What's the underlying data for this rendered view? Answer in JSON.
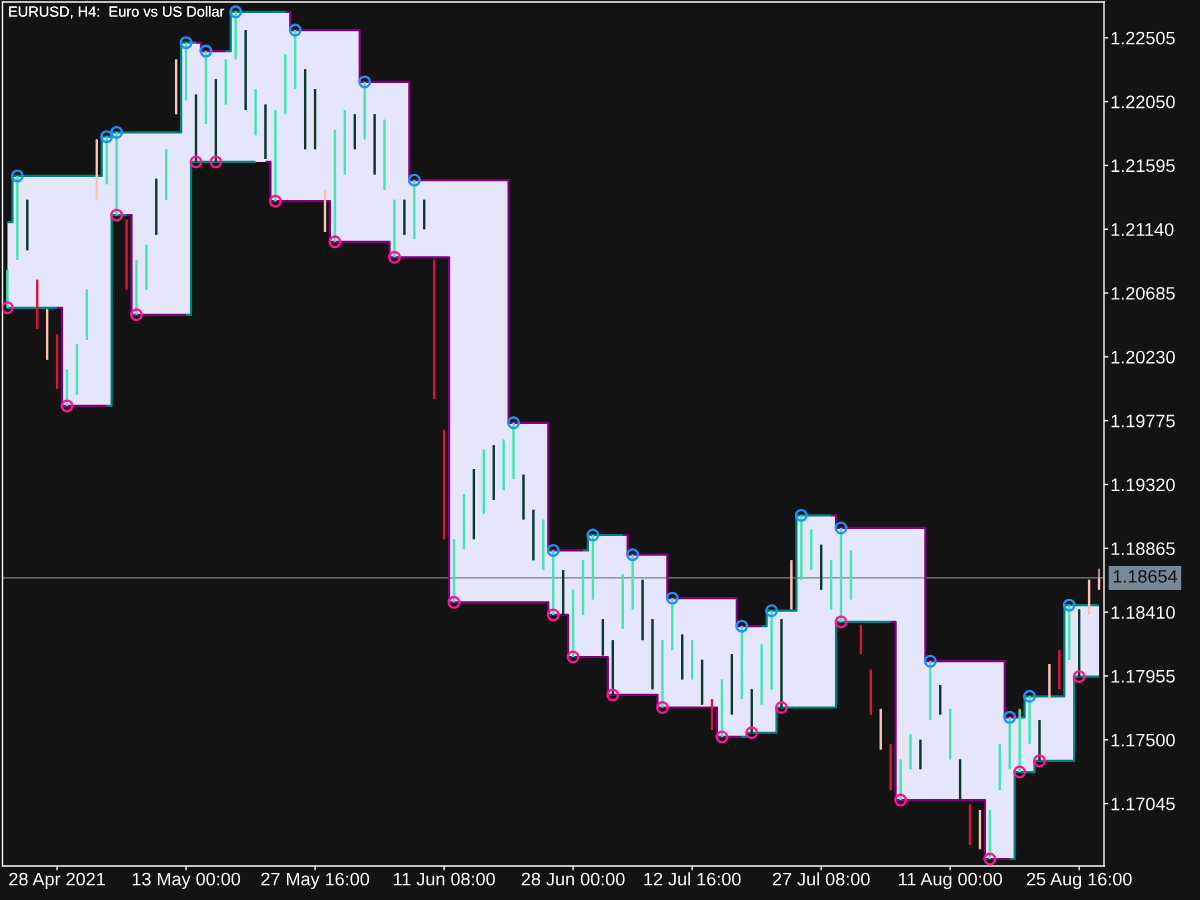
{
  "chart_data": {
    "type": "candlestick",
    "title": "EURUSD, H4:  Euro vs US Dollar",
    "categories": [
      null,
      null,
      null,
      null,
      null,
      "28 Apr 2021",
      null,
      null,
      null,
      null,
      null,
      null,
      null,
      null,
      null,
      null,
      null,
      null,
      "13 May 00:00",
      null,
      null,
      null,
      null,
      null,
      null,
      null,
      null,
      null,
      null,
      null,
      null,
      "27 May 16:00",
      null,
      null,
      null,
      null,
      null,
      null,
      null,
      null,
      null,
      null,
      null,
      null,
      "11 Jun 08:00",
      null,
      null,
      null,
      null,
      null,
      null,
      null,
      null,
      null,
      null,
      null,
      null,
      "28 Jun 00:00",
      null,
      null,
      null,
      null,
      null,
      null,
      null,
      null,
      null,
      null,
      null,
      "12 Jul 16:00",
      null,
      null,
      null,
      null,
      null,
      null,
      null,
      null,
      null,
      null,
      null,
      null,
      "27 Jul 08:00",
      null,
      null,
      null,
      null,
      null,
      null,
      null,
      null,
      null,
      null,
      null,
      null,
      "11 Aug 00:00",
      null,
      null,
      null,
      null,
      null,
      null,
      null,
      null,
      null,
      null,
      null,
      null,
      "25 Aug 16:00",
      null,
      null
    ],
    "ylim": [
      1.166,
      1.2276
    ],
    "yticks": [
      1.22505,
      {
        "value": 1.2205,
        "label": "1.22050"
      },
      1.21595,
      {
        "value": 1.2114,
        "label": "1.21140"
      },
      1.20685,
      {
        "value": 1.2023,
        "label": "1.20230"
      },
      1.19775,
      {
        "value": 1.1932,
        "label": "1.19320"
      },
      1.18865,
      {
        "value": 1.1841,
        "label": "1.18410"
      },
      1.17955,
      {
        "value": 1.175,
        "label": "1.17500"
      },
      1.17045
    ],
    "ref_lines": [
      {
        "axis": "y",
        "value": 1.18654,
        "label": "1.18654",
        "color": "#808080"
      }
    ],
    "series": [
      {
        "type": "step",
        "color": "#e6e6fa",
        "values": [
          null,
          null,
          null,
          null,
          null,
          null,
          null,
          null,
          null,
          null,
          null,
          null,
          null,
          null,
          null,
          null,
          null,
          null,
          null,
          null,
          null,
          null,
          null,
          null,
          null,
          null,
          null,
          null,
          null,
          null,
          null,
          null,
          null,
          null,
          null,
          null,
          null,
          null,
          null,
          null,
          null,
          null,
          null,
          null,
          null,
          null,
          null,
          null,
          null,
          null,
          null,
          null,
          null,
          null,
          null,
          null,
          null,
          null,
          null,
          null,
          null,
          null,
          null,
          null,
          null,
          null,
          null,
          null,
          null,
          null,
          null,
          null,
          null,
          null,
          null,
          null,
          null,
          null,
          null,
          null,
          null,
          null,
          null,
          null,
          null,
          null,
          null,
          null,
          null,
          null,
          null,
          null,
          null,
          null,
          null,
          null,
          null,
          null,
          null,
          null,
          null,
          null,
          null,
          null,
          null,
          null,
          null,
          null,
          null,
          null,
          null
        ],
        "upper": [
          1.2119,
          1.2152,
          1.2152,
          1.2152,
          1.2152,
          1.2152,
          1.2152,
          1.2152,
          1.2152,
          1.2152,
          1.218,
          1.2183,
          1.2183,
          1.2183,
          1.2183,
          1.2183,
          1.2183,
          1.2183,
          1.2247,
          1.2247,
          1.2241,
          1.2241,
          1.2241,
          1.2269,
          1.2269,
          1.2269,
          1.2269,
          1.2269,
          1.2269,
          1.2256,
          1.2256,
          1.2256,
          1.2256,
          1.2256,
          1.2256,
          1.2256,
          1.2219,
          1.2219,
          1.2219,
          1.2219,
          1.2219,
          1.2149,
          1.2149,
          1.2149,
          1.2149,
          1.2149,
          1.2149,
          1.2149,
          1.2149,
          1.2149,
          1.2149,
          1.1976,
          1.1976,
          1.1976,
          1.1976,
          1.1885,
          1.1885,
          1.1885,
          1.1885,
          1.1896,
          1.1896,
          1.1896,
          1.1896,
          1.1882,
          1.1882,
          1.1882,
          1.1882,
          1.1851,
          1.1851,
          1.1851,
          1.1851,
          1.1851,
          1.1851,
          1.1851,
          1.1831,
          1.1831,
          1.1831,
          1.1842,
          1.1842,
          1.1842,
          1.191,
          1.191,
          1.191,
          1.191,
          1.1901,
          1.1901,
          1.1901,
          1.1901,
          1.1901,
          1.1901,
          1.1901,
          1.1901,
          1.1901,
          1.1806,
          1.1806,
          1.1806,
          1.1806,
          1.1806,
          1.1806,
          1.1806,
          1.1806,
          1.1766,
          1.1766,
          1.1781,
          1.1781,
          1.1781,
          1.1781,
          1.1846,
          1.1846,
          1.1846,
          1.1846
        ],
        "lower": [
          1.2058,
          1.2058,
          1.2058,
          1.2058,
          1.2058,
          1.2058,
          1.1988,
          1.1988,
          1.1988,
          1.1988,
          1.1988,
          1.2124,
          1.2124,
          1.2053,
          1.2053,
          1.2053,
          1.2053,
          1.2053,
          1.2053,
          1.2162,
          1.2162,
          1.2162,
          1.2162,
          1.2162,
          1.2162,
          1.2162,
          1.2162,
          1.2134,
          1.2134,
          1.2134,
          1.2134,
          1.2134,
          1.2134,
          1.2105,
          1.2105,
          1.2105,
          1.2105,
          1.2105,
          1.2105,
          1.2094,
          1.2094,
          1.2094,
          1.2094,
          1.2094,
          1.2094,
          1.1848,
          1.1848,
          1.1848,
          1.1848,
          1.1848,
          1.1848,
          1.1848,
          1.1848,
          1.1848,
          1.1848,
          1.1839,
          1.1839,
          1.1809,
          1.1809,
          1.1809,
          1.1809,
          1.1782,
          1.1782,
          1.1782,
          1.1782,
          1.1782,
          1.1773,
          1.1773,
          1.1773,
          1.1773,
          1.1773,
          1.1773,
          1.1752,
          1.1752,
          1.1752,
          1.1755,
          1.1755,
          1.1755,
          1.1773,
          1.1773,
          1.1773,
          1.1773,
          1.1773,
          1.1773,
          1.1834,
          1.1834,
          1.1834,
          1.1834,
          1.1834,
          1.1834,
          1.1707,
          1.1707,
          1.1707,
          1.1707,
          1.1707,
          1.1707,
          1.1707,
          1.1707,
          1.1707,
          1.1665,
          1.1665,
          1.1665,
          1.1727,
          1.1727,
          1.1735,
          1.1735,
          1.1735,
          1.1735,
          1.1795,
          1.1795,
          1.1795
        ]
      },
      {
        "type": "step",
        "color": "#008080",
        "values": [
          1.2119,
          1.2152,
          1.2152,
          1.2152,
          1.2152,
          1.2152,
          1.2152,
          1.2152,
          1.2152,
          1.2152,
          1.218,
          1.2183,
          1.2183,
          1.2183,
          1.2183,
          1.2183,
          1.2183,
          1.2183,
          1.2247,
          1.2247,
          null,
          null,
          1.2241,
          1.2269,
          1.2269,
          1.2269,
          1.2269,
          1.2269,
          1.2269,
          null,
          null,
          null,
          null,
          null,
          null,
          null,
          null,
          null,
          null,
          null,
          null,
          null,
          null,
          null,
          null,
          null,
          null,
          null,
          null,
          null,
          null,
          null,
          null,
          null,
          null,
          null,
          null,
          null,
          1.1885,
          1.1896,
          1.1896,
          1.1896,
          1.1896,
          null,
          null,
          null,
          null,
          null,
          null,
          null,
          null,
          null,
          null,
          null,
          null,
          null,
          1.1831,
          1.1842,
          1.1842,
          1.1842,
          1.191,
          1.191,
          1.191,
          1.191,
          null,
          null,
          null,
          null,
          null,
          null,
          null,
          null,
          null,
          null,
          null,
          null,
          null,
          null,
          null,
          null,
          null,
          null,
          1.1766,
          1.1781,
          1.1781,
          1.1781,
          1.1781,
          1.1846,
          1.1846,
          1.1846,
          1.1846
        ]
      },
      {
        "type": "step",
        "color": "#800080",
        "values": [
          null,
          null,
          null,
          null,
          null,
          null,
          null,
          null,
          null,
          null,
          null,
          null,
          null,
          null,
          null,
          null,
          null,
          null,
          null,
          1.2247,
          1.2241,
          1.2241,
          1.2241,
          null,
          null,
          null,
          null,
          null,
          1.2269,
          1.2256,
          1.2256,
          1.2256,
          1.2256,
          1.2256,
          1.2256,
          1.2256,
          1.2219,
          1.2219,
          1.2219,
          1.2219,
          1.2219,
          1.2149,
          1.2149,
          1.2149,
          1.2149,
          1.2149,
          1.2149,
          1.2149,
          1.2149,
          1.2149,
          1.2149,
          1.1976,
          1.1976,
          1.1976,
          1.1976,
          1.1885,
          1.1885,
          1.1885,
          1.1885,
          null,
          null,
          null,
          1.1896,
          1.1882,
          1.1882,
          1.1882,
          1.1882,
          1.1851,
          1.1851,
          1.1851,
          1.1851,
          1.1851,
          1.1851,
          1.1851,
          1.1831,
          1.1831,
          1.1831,
          null,
          null,
          null,
          null,
          null,
          null,
          1.191,
          1.1901,
          1.1901,
          1.1901,
          1.1901,
          1.1901,
          1.1901,
          1.1901,
          1.1901,
          1.1901,
          1.1806,
          1.1806,
          1.1806,
          1.1806,
          1.1806,
          1.1806,
          1.1806,
          1.1806,
          1.1766,
          1.1766,
          null,
          null,
          null,
          null,
          null,
          null,
          null,
          null
        ]
      },
      {
        "type": "step",
        "color": "#008080",
        "values": [
          1.2058,
          1.2058,
          1.2058,
          1.2058,
          1.2058,
          1.2058,
          null,
          null,
          null,
          null,
          1.1988,
          1.2124,
          1.2124,
          null,
          null,
          null,
          null,
          null,
          1.2053,
          1.2162,
          1.2162,
          1.2162,
          1.2162,
          1.2162,
          1.2162,
          1.2162,
          null,
          null,
          null,
          null,
          null,
          null,
          null,
          null,
          null,
          null,
          null,
          null,
          null,
          null,
          null,
          null,
          null,
          null,
          null,
          null,
          null,
          null,
          null,
          null,
          null,
          null,
          null,
          null,
          null,
          null,
          null,
          null,
          null,
          null,
          null,
          null,
          null,
          null,
          null,
          null,
          null,
          null,
          null,
          null,
          null,
          null,
          null,
          null,
          1.1752,
          1.1755,
          1.1755,
          1.1755,
          1.1773,
          1.1773,
          1.1773,
          1.1773,
          1.1773,
          1.1773,
          1.1834,
          1.1834,
          1.1834,
          1.1834,
          1.1834,
          1.1834,
          null,
          null,
          null,
          null,
          null,
          null,
          null,
          null,
          null,
          null,
          null,
          1.1665,
          1.1727,
          1.1727,
          1.1735,
          1.1735,
          1.1735,
          1.1735,
          1.1795,
          1.1795,
          1.1795
        ]
      },
      {
        "type": "step",
        "color": "#800080",
        "values": [
          null,
          null,
          null,
          null,
          null,
          1.2058,
          1.1988,
          1.1988,
          1.1988,
          1.1988,
          1.1988,
          null,
          1.2124,
          1.2053,
          1.2053,
          1.2053,
          1.2053,
          1.2053,
          1.2053,
          null,
          null,
          null,
          null,
          null,
          null,
          null,
          1.2162,
          1.2134,
          1.2134,
          1.2134,
          1.2134,
          1.2134,
          1.2134,
          1.2105,
          1.2105,
          1.2105,
          1.2105,
          1.2105,
          1.2105,
          1.2094,
          1.2094,
          1.2094,
          1.2094,
          1.2094,
          1.2094,
          1.1848,
          1.1848,
          1.1848,
          1.1848,
          1.1848,
          1.1848,
          1.1848,
          1.1848,
          1.1848,
          1.1848,
          1.1839,
          1.1839,
          1.1809,
          1.1809,
          1.1809,
          1.1809,
          1.1782,
          1.1782,
          1.1782,
          1.1782,
          1.1782,
          1.1773,
          1.1773,
          1.1773,
          1.1773,
          1.1773,
          1.1773,
          1.1752,
          1.1752,
          1.1752,
          null,
          null,
          null,
          null,
          null,
          null,
          null,
          null,
          null,
          null,
          null,
          null,
          null,
          null,
          1.1834,
          1.1707,
          1.1707,
          1.1707,
          1.1707,
          1.1707,
          1.1707,
          1.1707,
          1.1707,
          1.1707,
          1.1665,
          1.1665,
          1.1665,
          null,
          null,
          null,
          null,
          null,
          null,
          null,
          null,
          null
        ]
      },
      {
        "ohlc": [
          [
            1.2058,
            1.2085,
            1.2058,
            1.2085
          ],
          [
            1.2092,
            1.2152,
            1.2092,
            1.2152
          ],
          [
            1.2135,
            1.2135,
            1.2099,
            1.2099
          ],
          [
            1.2078,
            1.2078,
            1.2043,
            1.2043
          ],
          [
            1.2021,
            1.2057,
            1.2021,
            1.2057
          ],
          [
            1.2039,
            1.2039,
            1.2,
            1.2
          ],
          [
            1.1988,
            1.2014,
            1.1988,
            1.2014
          ],
          [
            1.1996,
            1.2032,
            1.1996,
            1.2032
          ],
          [
            1.2035,
            1.2071,
            1.2035,
            1.2071
          ],
          [
            1.2135,
            1.2178,
            1.2135,
            1.2178
          ],
          [
            1.2146,
            1.218,
            1.2146,
            1.218
          ],
          [
            1.2124,
            1.2183,
            1.2124,
            1.2183
          ],
          [
            1.2121,
            1.2121,
            1.2071,
            1.2071
          ],
          [
            1.2053,
            1.2092,
            1.2053,
            1.2092
          ],
          [
            1.2071,
            1.2103,
            1.2071,
            1.2103
          ],
          [
            1.215,
            1.215,
            1.211,
            1.211
          ],
          [
            1.2135,
            1.2171,
            1.2135,
            1.2171
          ],
          [
            1.2196,
            1.2235,
            1.2196,
            1.2235
          ],
          [
            1.2206,
            1.2247,
            1.2206,
            1.2247
          ],
          [
            1.221,
            1.221,
            1.2162,
            1.2162
          ],
          [
            1.2189,
            1.2241,
            1.2189,
            1.2241
          ],
          [
            1.2221,
            1.2221,
            1.2162,
            1.2162
          ],
          [
            1.2203,
            1.2235,
            1.2203,
            1.2235
          ],
          [
            1.2235,
            1.2269,
            1.2235,
            1.2269
          ],
          [
            1.2256,
            1.2256,
            1.2199,
            1.2199
          ],
          [
            1.2181,
            1.2214,
            1.2181,
            1.2214
          ],
          [
            1.2203,
            1.2203,
            1.2164,
            1.2164
          ],
          [
            1.2134,
            1.2199,
            1.2134,
            1.2199
          ],
          [
            1.2196,
            1.2239,
            1.2196,
            1.2239
          ],
          [
            1.2214,
            1.2256,
            1.2214,
            1.2256
          ],
          [
            1.2228,
            1.2228,
            1.2171,
            1.2171
          ],
          [
            1.2214,
            1.2214,
            1.2171,
            1.2171
          ],
          [
            1.2112,
            1.2142,
            1.2112,
            1.2142
          ],
          [
            1.2105,
            1.2185,
            1.2105,
            1.2185
          ],
          [
            1.2153,
            1.2199,
            1.2153,
            1.2199
          ],
          [
            1.2196,
            1.2196,
            1.2171,
            1.2171
          ],
          [
            1.2178,
            1.2219,
            1.2178,
            1.2219
          ],
          [
            1.2196,
            1.2196,
            1.2153,
            1.2153
          ],
          [
            1.2142,
            1.2192,
            1.2142,
            1.2192
          ],
          [
            1.2094,
            1.2135,
            1.2094,
            1.2135
          ],
          [
            1.2135,
            1.2135,
            1.211,
            1.211
          ],
          [
            1.2107,
            1.2149,
            1.2107,
            1.2149
          ],
          [
            1.2135,
            1.2135,
            1.2114,
            1.2114
          ],
          [
            1.2092,
            1.2092,
            1.1993,
            1.1993
          ],
          [
            1.1971,
            1.1971,
            1.1893,
            1.1893
          ],
          [
            1.1848,
            1.1893,
            1.1848,
            1.1893
          ],
          [
            1.1886,
            1.1925,
            1.1886,
            1.1925
          ],
          [
            1.1943,
            1.1943,
            1.1893,
            1.1893
          ],
          [
            1.1911,
            1.1957,
            1.1911,
            1.1957
          ],
          [
            1.196,
            1.196,
            1.1921,
            1.1921
          ],
          [
            1.1928,
            1.1964,
            1.1928,
            1.1964
          ],
          [
            1.1936,
            1.1976,
            1.1936,
            1.1976
          ],
          [
            1.1939,
            1.1939,
            1.1907,
            1.1907
          ],
          [
            1.1914,
            1.1914,
            1.1878,
            1.1878
          ],
          [
            1.1871,
            1.1907,
            1.1871,
            1.1907
          ],
          [
            1.1839,
            1.1885,
            1.1839,
            1.1885
          ],
          [
            1.1871,
            1.1871,
            1.1839,
            1.1839
          ],
          [
            1.1809,
            1.1857,
            1.1809,
            1.1857
          ],
          [
            1.1839,
            1.1878,
            1.1839,
            1.1878
          ],
          [
            1.185,
            1.1896,
            1.185,
            1.1896
          ],
          [
            1.1836,
            1.1836,
            1.181,
            1.181
          ],
          [
            1.1821,
            1.1821,
            1.1782,
            1.1782
          ],
          [
            1.1829,
            1.1868,
            1.1829,
            1.1868
          ],
          [
            1.1843,
            1.1882,
            1.1843,
            1.1882
          ],
          [
            1.1864,
            1.1864,
            1.1821,
            1.1821
          ],
          [
            1.1836,
            1.1836,
            1.1786,
            1.1786
          ],
          [
            1.1773,
            1.1821,
            1.1773,
            1.1821
          ],
          [
            1.1814,
            1.1851,
            1.1814,
            1.1851
          ],
          [
            1.1825,
            1.1825,
            1.1793,
            1.1793
          ],
          [
            1.1793,
            1.1821,
            1.1793,
            1.1821
          ],
          [
            1.1807,
            1.1807,
            1.1775,
            1.1775
          ],
          [
            1.1779,
            1.1779,
            1.1757,
            1.1757
          ],
          [
            1.1752,
            1.1793,
            1.1752,
            1.1793
          ],
          [
            1.1811,
            1.1811,
            1.1768,
            1.1768
          ],
          [
            1.1779,
            1.1831,
            1.1779,
            1.1831
          ],
          [
            1.1786,
            1.1786,
            1.1755,
            1.1755
          ],
          [
            1.1775,
            1.1818,
            1.1775,
            1.1818
          ],
          [
            1.1786,
            1.1842,
            1.1786,
            1.1842
          ],
          [
            1.1836,
            1.1836,
            1.1773,
            1.1773
          ],
          [
            1.1843,
            1.1878,
            1.1843,
            1.1878
          ],
          [
            1.1864,
            1.191,
            1.1864,
            1.191
          ],
          [
            1.1871,
            1.19,
            1.1871,
            1.19
          ],
          [
            1.1889,
            1.1889,
            1.1857,
            1.1857
          ],
          [
            1.1843,
            1.1878,
            1.1843,
            1.1878
          ],
          [
            1.1834,
            1.1901,
            1.1834,
            1.1901
          ],
          [
            1.185,
            1.1885,
            1.185,
            1.1885
          ],
          [
            1.1832,
            1.1832,
            1.1811,
            1.1811
          ],
          [
            1.18,
            1.18,
            1.1768,
            1.1768
          ],
          [
            1.1743,
            1.1772,
            1.1743,
            1.1772
          ],
          [
            1.1747,
            1.1747,
            1.1714,
            1.1714
          ],
          [
            1.1707,
            1.1736,
            1.1707,
            1.1736
          ],
          [
            1.1729,
            1.1754,
            1.1729,
            1.1754
          ],
          [
            1.175,
            1.175,
            1.1729,
            1.1729
          ],
          [
            1.1764,
            1.1806,
            1.1764,
            1.1806
          ],
          [
            1.1789,
            1.1789,
            1.1768,
            1.1768
          ],
          [
            1.1736,
            1.1772,
            1.1736,
            1.1772
          ],
          [
            1.1736,
            1.1736,
            1.1707,
            1.1707
          ],
          [
            1.1704,
            1.1704,
            1.1675,
            1.1675
          ],
          [
            1.1672,
            1.17,
            1.1672,
            1.17
          ],
          [
            1.1665,
            1.17,
            1.1665,
            1.17
          ],
          [
            1.1714,
            1.1747,
            1.1714,
            1.1747
          ],
          [
            1.1729,
            1.1766,
            1.1729,
            1.1766
          ],
          [
            1.1727,
            1.1772,
            1.1727,
            1.1772
          ],
          [
            1.1747,
            1.1781,
            1.1747,
            1.1781
          ],
          [
            1.1764,
            1.1764,
            1.1735,
            1.1735
          ],
          [
            1.1779,
            1.1804,
            1.1779,
            1.1804
          ],
          [
            1.1814,
            1.1814,
            1.1786,
            1.1786
          ],
          [
            1.1807,
            1.1846,
            1.1807,
            1.1846
          ],
          [
            1.1843,
            1.1843,
            1.1795,
            1.1795
          ],
          [
            1.1839,
            1.1864,
            1.1839,
            1.1864
          ],
          [
            1.1857,
            1.1872,
            1.1857,
            1.1865
          ]
        ],
        "colors": [
          "#40e8b0",
          "#40e8b0",
          "#0b3a2a",
          "#dc143c",
          "#ffc0b4",
          "#dc143c",
          "#40e8b0",
          "#40e8b0",
          "#40e8b0",
          "#ffc0b4",
          "#40e8b0",
          "#40e8b0",
          "#dc143c",
          "#40e8b0",
          "#40e8b0",
          "#0b3a2a",
          "#40e8b0",
          "#ffc0b4",
          "#40e8b0",
          "#0b3a2a",
          "#40e8b0",
          "#0b3a2a",
          "#40e8b0",
          "#40e8b0",
          "#0b3a2a",
          "#40e8b0",
          "#0b3a2a",
          "#40e8b0",
          "#40e8b0",
          "#40e8b0",
          "#0b3a2a",
          "#0b3a2a",
          "#ffc0b4",
          "#40e8b0",
          "#40e8b0",
          "#0b3a2a",
          "#40e8b0",
          "#0b3a2a",
          "#40e8b0",
          "#40e8b0",
          "#0b3a2a",
          "#40e8b0",
          "#0b3a2a",
          "#dc143c",
          "#dc143c",
          "#40e8b0",
          "#40e8b0",
          "#0b3a2a",
          "#40e8b0",
          "#0b3a2a",
          "#40e8b0",
          "#40e8b0",
          "#0b3a2a",
          "#0b3a2a",
          "#40e8b0",
          "#40e8b0",
          "#0b3a2a",
          "#40e8b0",
          "#40e8b0",
          "#40e8b0",
          "#0b3a2a",
          "#0b3a2a",
          "#40e8b0",
          "#40e8b0",
          "#0b3a2a",
          "#0b3a2a",
          "#40e8b0",
          "#40e8b0",
          "#0b3a2a",
          "#40e8b0",
          "#0b3a2a",
          "#dc143c",
          "#40e8b0",
          "#0b3a2a",
          "#40e8b0",
          "#0b3a2a",
          "#40e8b0",
          "#40e8b0",
          "#0b3a2a",
          "#ffc0b4",
          "#40e8b0",
          "#40e8b0",
          "#0b3a2a",
          "#40e8b0",
          "#40e8b0",
          "#40e8b0",
          "#dc143c",
          "#dc143c",
          "#ffc0b4",
          "#dc143c",
          "#40e8b0",
          "#40e8b0",
          "#0b3a2a",
          "#40e8b0",
          "#0b3a2a",
          "#40e8b0",
          "#0b3a2a",
          "#dc143c",
          "#ffc0b4",
          "#40e8b0",
          "#40e8b0",
          "#40e8b0",
          "#40e8b0",
          "#40e8b0",
          "#0b3a2a",
          "#ffc0b4",
          "#dc143c",
          "#40e8b0",
          "#0b3a2a",
          "#ffc0b4",
          "#ffc0b4"
        ]
      },
      {
        "type": "scatter",
        "color": "#1e90ff",
        "marker": "circle",
        "values": [
          null,
          1.2152,
          null,
          null,
          null,
          null,
          null,
          null,
          null,
          null,
          1.218,
          1.2183,
          null,
          null,
          null,
          null,
          null,
          null,
          1.2247,
          null,
          1.2241,
          null,
          null,
          1.2269,
          null,
          null,
          null,
          null,
          null,
          1.2256,
          null,
          null,
          null,
          null,
          null,
          null,
          1.2219,
          null,
          null,
          null,
          null,
          1.2149,
          null,
          null,
          null,
          null,
          null,
          null,
          null,
          null,
          null,
          1.1976,
          null,
          null,
          null,
          1.1885,
          null,
          null,
          null,
          1.1896,
          null,
          null,
          null,
          1.1882,
          null,
          null,
          null,
          1.1851,
          null,
          null,
          null,
          null,
          null,
          null,
          1.1831,
          null,
          null,
          1.1842,
          null,
          null,
          1.191,
          null,
          null,
          null,
          1.1901,
          null,
          null,
          null,
          null,
          null,
          null,
          null,
          null,
          1.1806,
          null,
          null,
          null,
          null,
          null,
          null,
          null,
          1.1766,
          null,
          1.1781,
          null,
          null,
          null,
          1.1846,
          null,
          null,
          null
        ]
      },
      {
        "type": "scatter",
        "color": "#ff1493",
        "marker": "circle",
        "values": [
          1.2058,
          null,
          null,
          null,
          null,
          null,
          1.1988,
          null,
          null,
          null,
          null,
          1.2124,
          null,
          1.2053,
          null,
          null,
          null,
          null,
          null,
          1.2162,
          null,
          1.2162,
          null,
          null,
          null,
          null,
          null,
          1.2134,
          null,
          null,
          null,
          null,
          null,
          1.2105,
          null,
          null,
          null,
          null,
          null,
          1.2094,
          null,
          null,
          null,
          null,
          null,
          1.1848,
          null,
          null,
          null,
          null,
          null,
          null,
          null,
          null,
          null,
          1.1839,
          null,
          1.1809,
          null,
          null,
          null,
          1.1782,
          null,
          null,
          null,
          null,
          1.1773,
          null,
          null,
          null,
          null,
          null,
          1.1752,
          null,
          null,
          1.1755,
          null,
          null,
          1.1773,
          null,
          null,
          null,
          null,
          null,
          1.1834,
          null,
          null,
          null,
          null,
          null,
          1.1707,
          null,
          null,
          null,
          null,
          null,
          null,
          null,
          null,
          1.1665,
          null,
          null,
          1.1727,
          null,
          1.1735,
          null,
          null,
          null,
          1.1795,
          null,
          null
        ]
      }
    ]
  }
}
